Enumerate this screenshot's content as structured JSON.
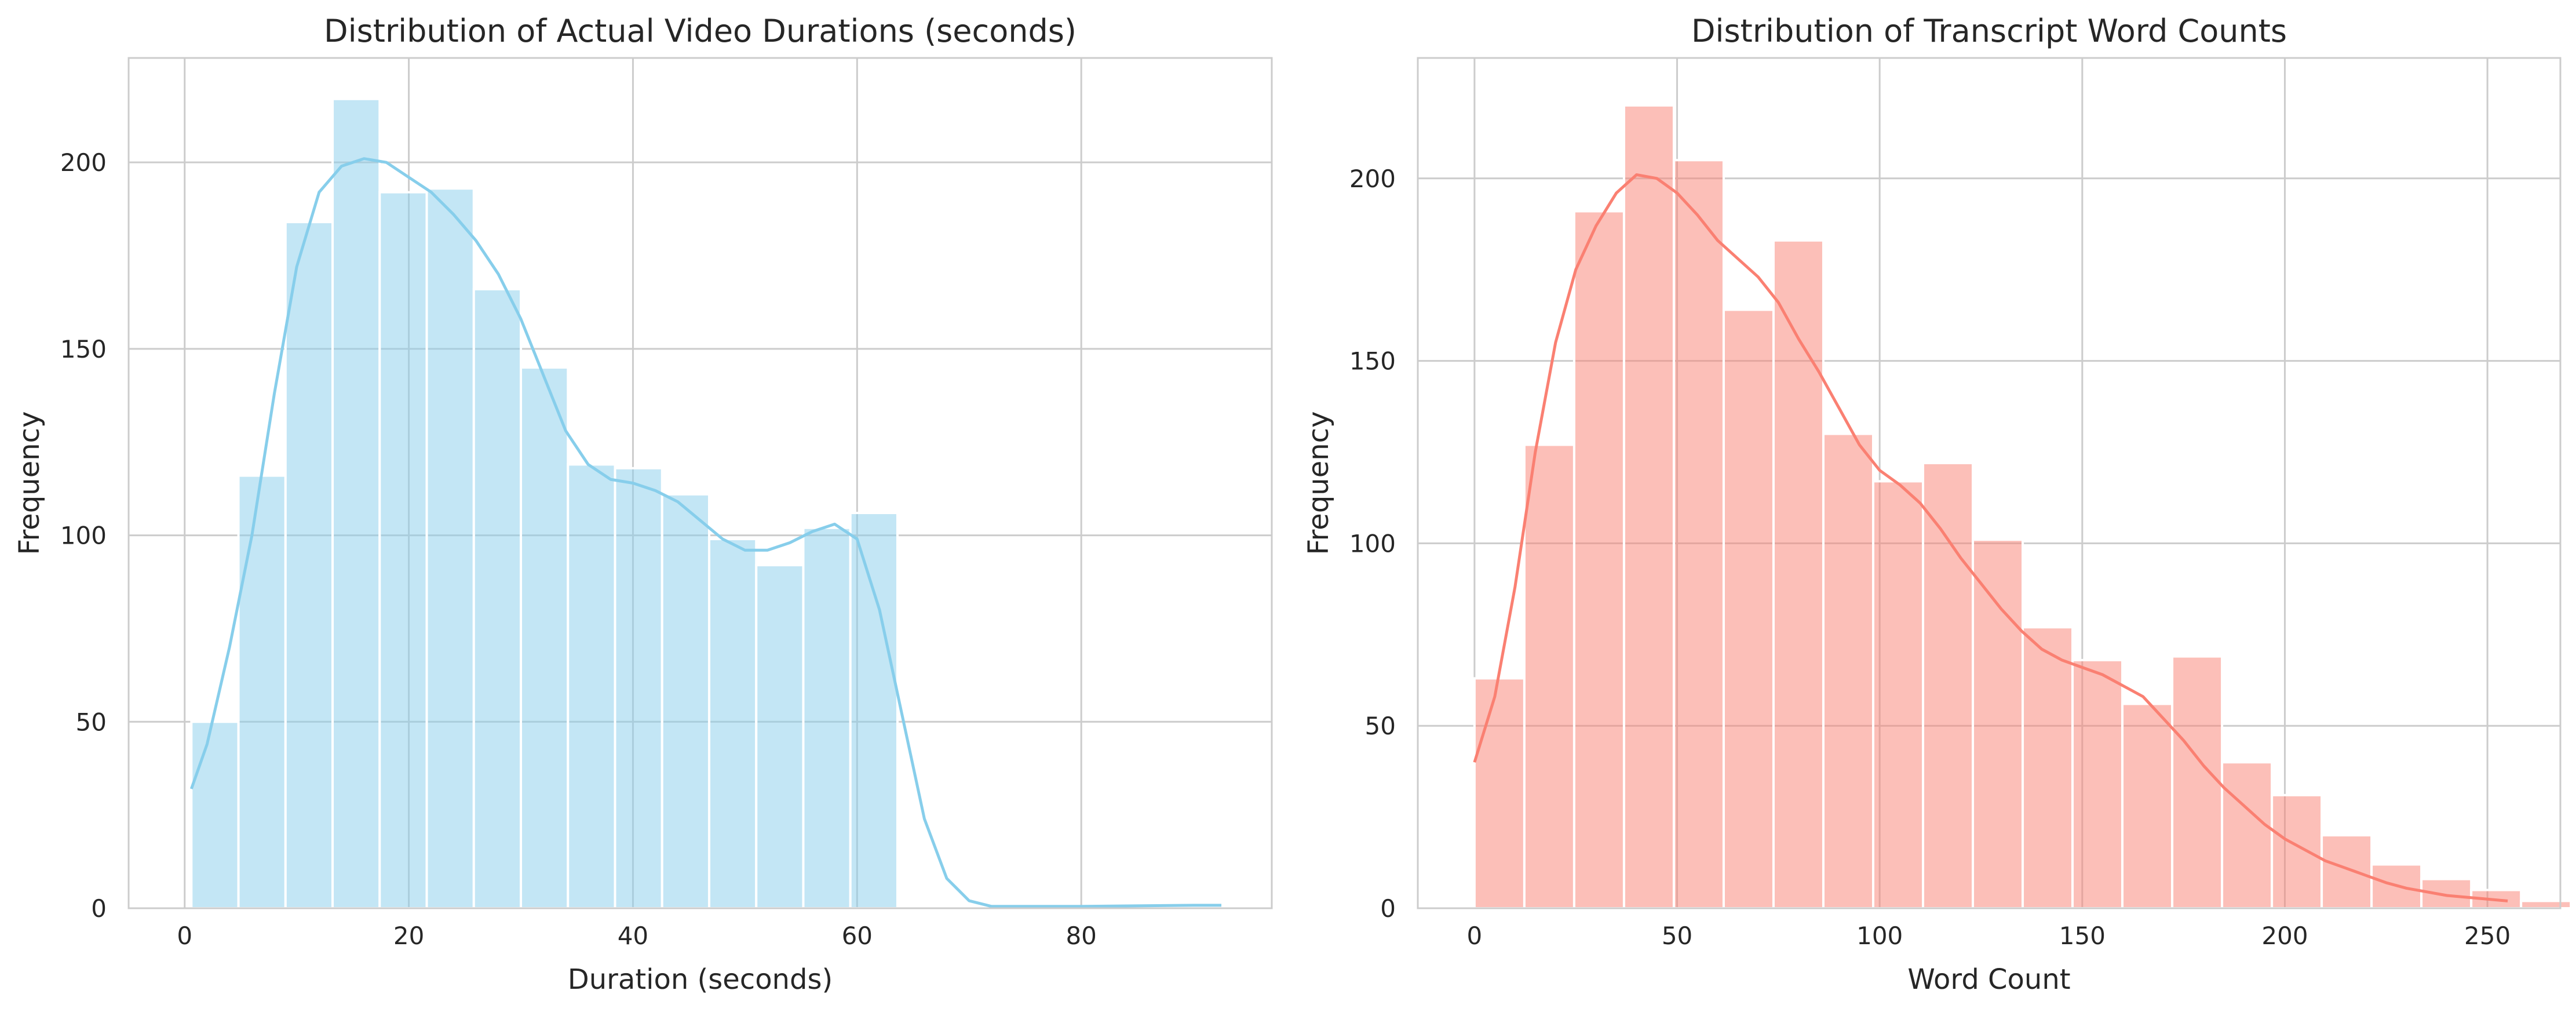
{
  "charts": [
    {
      "type": "bar",
      "title": "Distribution of Actual Video Durations (seconds)",
      "xlabel": "Duration (seconds)",
      "ylabel": "Frequency",
      "xlim": [
        -5,
        97
      ],
      "ylim": [
        0,
        228
      ],
      "xticks": [
        0,
        20,
        40,
        60,
        80
      ],
      "yticks": [
        0,
        50,
        100,
        150,
        200
      ],
      "grid": true,
      "bar_color": "#87ceeb",
      "line_color": "#87ceeb",
      "bins": [
        {
          "x0": 0.6,
          "x1": 4.8,
          "value": 50
        },
        {
          "x0": 4.8,
          "x1": 9.0,
          "value": 116
        },
        {
          "x0": 9.0,
          "x1": 13.2,
          "value": 184
        },
        {
          "x0": 13.2,
          "x1": 17.4,
          "value": 217
        },
        {
          "x0": 17.4,
          "x1": 21.6,
          "value": 192
        },
        {
          "x0": 21.6,
          "x1": 25.8,
          "value": 193
        },
        {
          "x0": 25.8,
          "x1": 30.0,
          "value": 166
        },
        {
          "x0": 30.0,
          "x1": 34.2,
          "value": 145
        },
        {
          "x0": 34.2,
          "x1": 38.4,
          "value": 119
        },
        {
          "x0": 38.4,
          "x1": 42.6,
          "value": 118
        },
        {
          "x0": 42.6,
          "x1": 46.8,
          "value": 111
        },
        {
          "x0": 46.8,
          "x1": 51.0,
          "value": 99
        },
        {
          "x0": 51.0,
          "x1": 55.2,
          "value": 92
        },
        {
          "x0": 55.2,
          "x1": 59.4,
          "value": 102
        },
        {
          "x0": 59.4,
          "x1": 63.6,
          "value": 106
        }
      ],
      "kde": [
        [
          0.6,
          32
        ],
        [
          2,
          44
        ],
        [
          4,
          70
        ],
        [
          6,
          100
        ],
        [
          8,
          138
        ],
        [
          10,
          172
        ],
        [
          12,
          192
        ],
        [
          14,
          199
        ],
        [
          16,
          201
        ],
        [
          18,
          200
        ],
        [
          20,
          196
        ],
        [
          22,
          192
        ],
        [
          24,
          186
        ],
        [
          26,
          179
        ],
        [
          28,
          170
        ],
        [
          30,
          158
        ],
        [
          32,
          143
        ],
        [
          34,
          128
        ],
        [
          36,
          119
        ],
        [
          38,
          115
        ],
        [
          40,
          114
        ],
        [
          42,
          112
        ],
        [
          44,
          109
        ],
        [
          46,
          104
        ],
        [
          48,
          99
        ],
        [
          50,
          96
        ],
        [
          52,
          96
        ],
        [
          54,
          98
        ],
        [
          56,
          101
        ],
        [
          58,
          103
        ],
        [
          60,
          99
        ],
        [
          62,
          80
        ],
        [
          64,
          52
        ],
        [
          66,
          24
        ],
        [
          68,
          8
        ],
        [
          70,
          2
        ],
        [
          72,
          0.5
        ],
        [
          80,
          0.5
        ],
        [
          90,
          0.8
        ],
        [
          92.5,
          0.8
        ]
      ]
    },
    {
      "type": "bar",
      "title": "Distribution of Transcript Word Counts",
      "xlabel": "Word Count",
      "ylabel": "Frequency",
      "xlim": [
        -14,
        268
      ],
      "ylim": [
        0,
        233
      ],
      "xticks": [
        0,
        50,
        100,
        150,
        200,
        250
      ],
      "yticks": [
        0,
        50,
        100,
        150,
        200
      ],
      "grid": true,
      "bar_color": "#fa8072",
      "line_color": "#fa8072",
      "bins": [
        {
          "x0": 0,
          "x1": 12.3,
          "value": 63
        },
        {
          "x0": 12.3,
          "x1": 24.6,
          "value": 127
        },
        {
          "x0": 24.6,
          "x1": 36.9,
          "value": 191
        },
        {
          "x0": 36.9,
          "x1": 49.2,
          "value": 220
        },
        {
          "x0": 49.2,
          "x1": 61.5,
          "value": 205
        },
        {
          "x0": 61.5,
          "x1": 73.8,
          "value": 164
        },
        {
          "x0": 73.8,
          "x1": 86.1,
          "value": 183
        },
        {
          "x0": 86.1,
          "x1": 98.4,
          "value": 130
        },
        {
          "x0": 98.4,
          "x1": 110.7,
          "value": 117
        },
        {
          "x0": 110.7,
          "x1": 123.0,
          "value": 122
        },
        {
          "x0": 123.0,
          "x1": 135.3,
          "value": 101
        },
        {
          "x0": 135.3,
          "x1": 147.6,
          "value": 77
        },
        {
          "x0": 147.6,
          "x1": 159.9,
          "value": 68
        },
        {
          "x0": 159.9,
          "x1": 172.2,
          "value": 56
        },
        {
          "x0": 172.2,
          "x1": 184.5,
          "value": 69
        },
        {
          "x0": 184.5,
          "x1": 196.8,
          "value": 40
        },
        {
          "x0": 196.8,
          "x1": 209.1,
          "value": 31
        },
        {
          "x0": 209.1,
          "x1": 221.4,
          "value": 20
        },
        {
          "x0": 221.4,
          "x1": 233.7,
          "value": 12
        },
        {
          "x0": 233.7,
          "x1": 246.0,
          "value": 8
        },
        {
          "x0": 246.0,
          "x1": 258.3,
          "value": 5
        },
        {
          "x0": 258.3,
          "x1": 270.6,
          "value": 2
        }
      ],
      "kde": [
        [
          0,
          40
        ],
        [
          5,
          58
        ],
        [
          10,
          88
        ],
        [
          15,
          125
        ],
        [
          20,
          155
        ],
        [
          25,
          175
        ],
        [
          30,
          187
        ],
        [
          35,
          196
        ],
        [
          40,
          201
        ],
        [
          45,
          200
        ],
        [
          50,
          196
        ],
        [
          55,
          190
        ],
        [
          60,
          183
        ],
        [
          65,
          178
        ],
        [
          70,
          173
        ],
        [
          75,
          166
        ],
        [
          80,
          156
        ],
        [
          85,
          147
        ],
        [
          90,
          137
        ],
        [
          95,
          127
        ],
        [
          100,
          120
        ],
        [
          105,
          116
        ],
        [
          110,
          111
        ],
        [
          115,
          104
        ],
        [
          120,
          96
        ],
        [
          125,
          89
        ],
        [
          130,
          82
        ],
        [
          135,
          76
        ],
        [
          140,
          71
        ],
        [
          145,
          68
        ],
        [
          150,
          66
        ],
        [
          155,
          64
        ],
        [
          160,
          61
        ],
        [
          165,
          58
        ],
        [
          170,
          52
        ],
        [
          175,
          46
        ],
        [
          180,
          39
        ],
        [
          185,
          33
        ],
        [
          190,
          28
        ],
        [
          195,
          23
        ],
        [
          200,
          19
        ],
        [
          205,
          16
        ],
        [
          210,
          13
        ],
        [
          215,
          11
        ],
        [
          220,
          9
        ],
        [
          225,
          7
        ],
        [
          230,
          5.5
        ],
        [
          235,
          4.5
        ],
        [
          240,
          3.5
        ],
        [
          245,
          3
        ],
        [
          250,
          2.5
        ],
        [
          255,
          2
        ]
      ]
    }
  ]
}
